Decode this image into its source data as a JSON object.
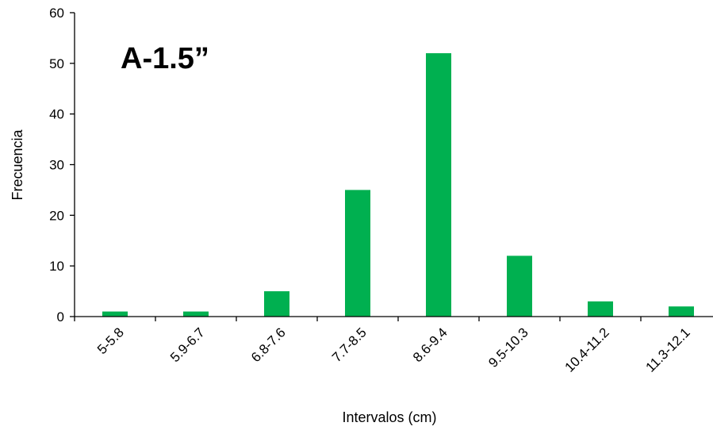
{
  "chart_data": {
    "type": "bar",
    "title": "A-1.5”",
    "xlabel": "Intervalos (cm)",
    "ylabel": "Frecuencia",
    "categories": [
      "5-5.8",
      "5.9-6.7",
      "6.8-7.6",
      "7.7-8.5",
      "8.6-9.4",
      "9.5-10.3",
      "10.4-11.2",
      "11.3-12.1"
    ],
    "values": [
      1,
      1,
      5,
      25,
      52,
      12,
      3,
      2
    ],
    "ylim": [
      0,
      60
    ],
    "yticks": [
      "0",
      "10",
      "20",
      "30",
      "40",
      "50",
      "60"
    ],
    "grid": false,
    "legend": "none",
    "bar_color": "#00b050",
    "axis_color": "#000000"
  }
}
